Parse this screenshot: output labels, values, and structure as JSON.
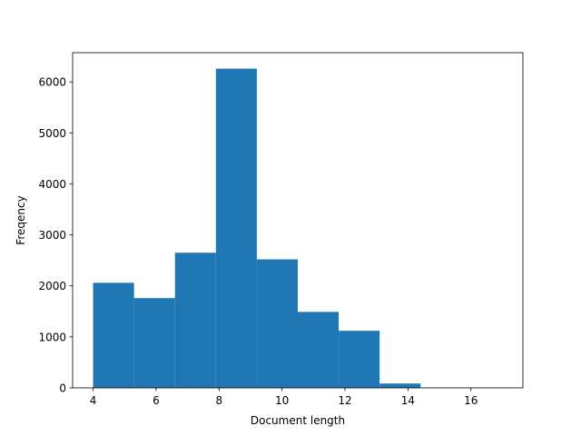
{
  "chart_data": {
    "type": "histogram",
    "xlabel": "Document length",
    "ylabel": "Freqency",
    "bins": [
      4,
      5.3,
      6.6,
      7.9,
      9.2,
      10.5,
      11.8,
      13.1,
      14.4,
      15.7,
      17
    ],
    "values": [
      2060,
      1760,
      2650,
      6260,
      2520,
      1490,
      1120,
      85,
      0,
      3
    ],
    "color": "#1f77b4",
    "xlim": [
      3.35,
      17.65
    ],
    "xticks": [
      4,
      6,
      8,
      10,
      12,
      14,
      16
    ],
    "ylim": [
      0,
      6573
    ],
    "yticks": [
      0,
      1000,
      2000,
      3000,
      4000,
      5000,
      6000
    ]
  }
}
